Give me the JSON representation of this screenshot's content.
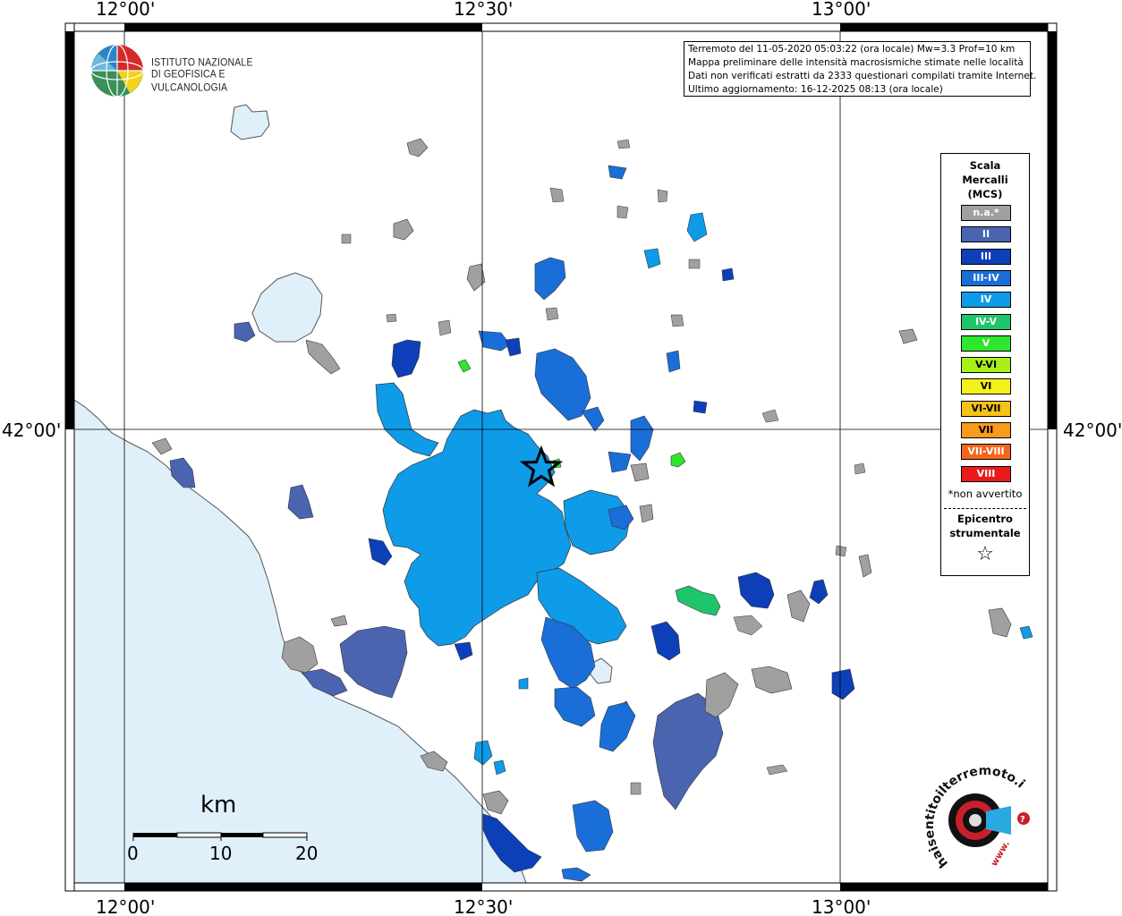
{
  "header": {
    "lines": [
      "Terremoto del 11-05-2020 05:03:22 (ora locale) Mw=3.3 Prof=10 km",
      "Mappa preliminare delle intensità macrosismiche stimate nelle località",
      "Dati non verificati estratti da 2333 questionari compilati tramite Internet.",
      "Ultimo aggiornamento: 16-12-2025 08:13 (ora locale)"
    ]
  },
  "institute_logo": {
    "line1": "ISTITUTO NAZIONALE",
    "line2": "DI GEOFISICA E VULCANOLOGIA"
  },
  "axes": {
    "top_labels": [
      "12°00'",
      "12°30'",
      "13°00'"
    ],
    "bottom_labels": [
      "12°00'",
      "12°30'",
      "13°00'"
    ],
    "left_label": "42°00'",
    "right_label": "42°00'"
  },
  "legend": {
    "title": [
      "Scala",
      "Mercalli",
      "(MCS)"
    ],
    "items": [
      {
        "label": "n.a.*",
        "color": "#a0a0a0"
      },
      {
        "label": "II",
        "color": "#4a64b0"
      },
      {
        "label": "III",
        "color": "#0d3fb8"
      },
      {
        "label": "III-IV",
        "color": "#1a6ed8"
      },
      {
        "label": "IV",
        "color": "#0e9be8"
      },
      {
        "label": "IV-V",
        "color": "#1fc56b"
      },
      {
        "label": "V",
        "color": "#2ee62e"
      },
      {
        "label": "V-VI",
        "color": "#a8ef1c"
      },
      {
        "label": "VI",
        "color": "#f4f01a"
      },
      {
        "label": "VI-VII",
        "color": "#f6c21a"
      },
      {
        "label": "VII",
        "color": "#f89a1a"
      },
      {
        "label": "VII-VIII",
        "color": "#f5651a"
      },
      {
        "label": "VIII",
        "color": "#ea1a1a"
      }
    ],
    "note": "*non avvertito",
    "epicenter_title": [
      "Epicentro",
      "strumentale"
    ],
    "epicenter_symbol": "☆"
  },
  "scalebar": {
    "title": "km",
    "labels": [
      "0",
      "10",
      "20"
    ]
  },
  "site_logo": {
    "text": "haisentitoilterremoto.it",
    "prefix": "www."
  },
  "colors": {
    "sea": "#dff0fb",
    "lake": "#dff0fb",
    "frame": "#000000"
  }
}
